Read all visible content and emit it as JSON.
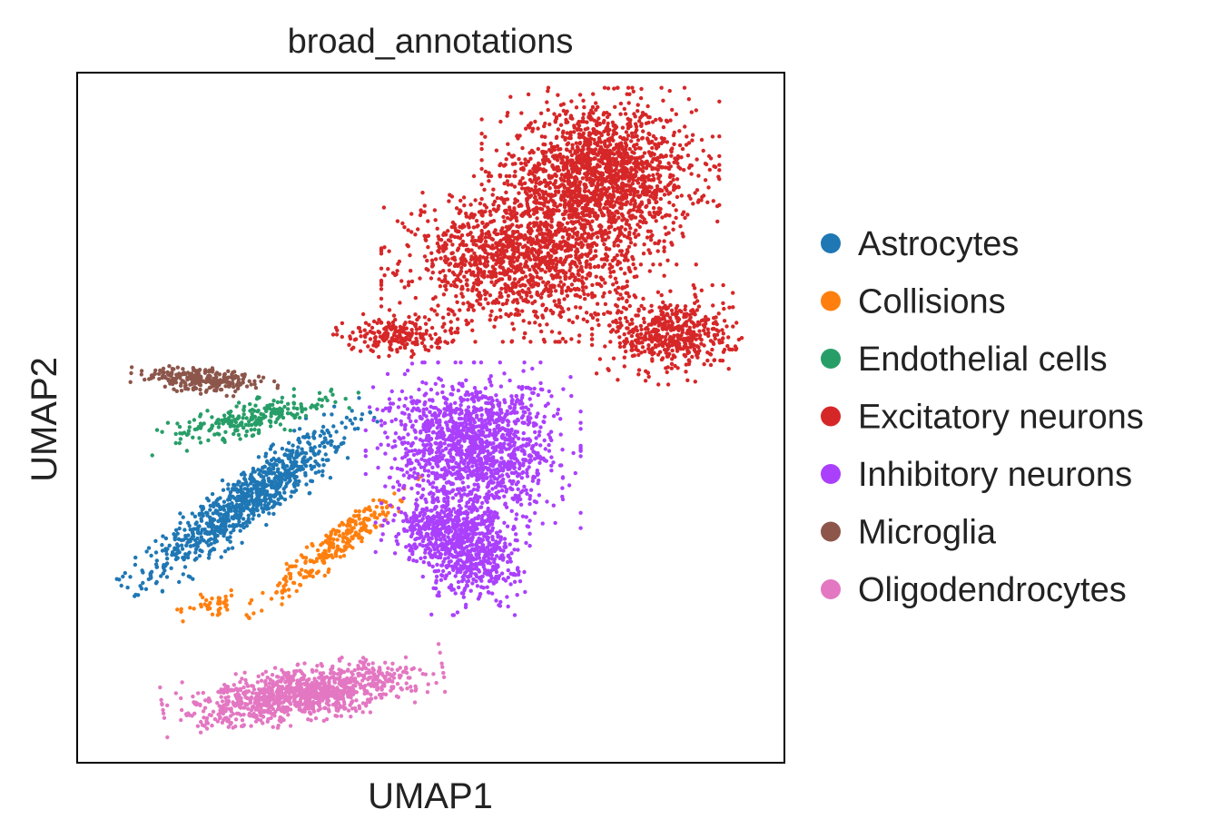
{
  "chart_data": {
    "type": "scatter",
    "title": "broad_annotations",
    "xlabel": "UMAP1",
    "ylabel": "UMAP2",
    "xlim": [
      0,
      10
    ],
    "ylim": [
      0,
      10
    ],
    "grid": false,
    "ticks": false,
    "legend_position": "right",
    "series": [
      {
        "name": "Astrocytes",
        "color": "#1f77b4",
        "clusters": [
          {
            "cx": 2.4,
            "cy": 3.8,
            "sx": 1.35,
            "sy": 0.28,
            "angle": 37,
            "n": 900
          }
        ]
      },
      {
        "name": "Collisions",
        "color": "#ff7f0e",
        "clusters": [
          {
            "cx": 3.7,
            "cy": 3.2,
            "sx": 1.05,
            "sy": 0.18,
            "angle": 40,
            "n": 260
          },
          {
            "cx": 1.9,
            "cy": 2.3,
            "sx": 0.35,
            "sy": 0.12,
            "angle": 10,
            "n": 40
          }
        ]
      },
      {
        "name": "Endothelial cells",
        "color": "#279e68",
        "clusters": [
          {
            "cx": 2.5,
            "cy": 5.0,
            "sx": 0.95,
            "sy": 0.18,
            "angle": 12,
            "n": 240
          }
        ]
      },
      {
        "name": "Excitatory neurons",
        "color": "#d62728",
        "clusters": [
          {
            "cx": 7.4,
            "cy": 8.5,
            "sx": 1.05,
            "sy": 0.8,
            "angle": 0,
            "n": 1700
          },
          {
            "cx": 6.3,
            "cy": 7.3,
            "sx": 1.25,
            "sy": 0.75,
            "angle": 0,
            "n": 1400
          },
          {
            "cx": 8.4,
            "cy": 6.2,
            "sx": 0.7,
            "sy": 0.45,
            "angle": 0,
            "n": 500
          },
          {
            "cx": 4.5,
            "cy": 6.2,
            "sx": 0.55,
            "sy": 0.2,
            "angle": 0,
            "n": 200
          }
        ]
      },
      {
        "name": "Inhibitory neurons",
        "color": "#aa40fc",
        "clusters": [
          {
            "cx": 5.6,
            "cy": 4.6,
            "sx": 0.95,
            "sy": 0.75,
            "angle": 0,
            "n": 1400
          },
          {
            "cx": 5.6,
            "cy": 3.1,
            "sx": 0.5,
            "sy": 0.6,
            "angle": 0,
            "n": 600
          },
          {
            "cx": 5.1,
            "cy": 3.4,
            "sx": 0.55,
            "sy": 0.35,
            "angle": 0,
            "n": 300
          }
        ]
      },
      {
        "name": "Microglia",
        "color": "#8c564b",
        "clusters": [
          {
            "cx": 1.8,
            "cy": 5.55,
            "sx": 0.65,
            "sy": 0.13,
            "angle": -5,
            "n": 260
          }
        ]
      },
      {
        "name": "Oligodendrocytes",
        "color": "#e377c2",
        "clusters": [
          {
            "cx": 3.2,
            "cy": 1.0,
            "sx": 1.25,
            "sy": 0.27,
            "angle": 9,
            "n": 1100
          }
        ]
      }
    ]
  }
}
